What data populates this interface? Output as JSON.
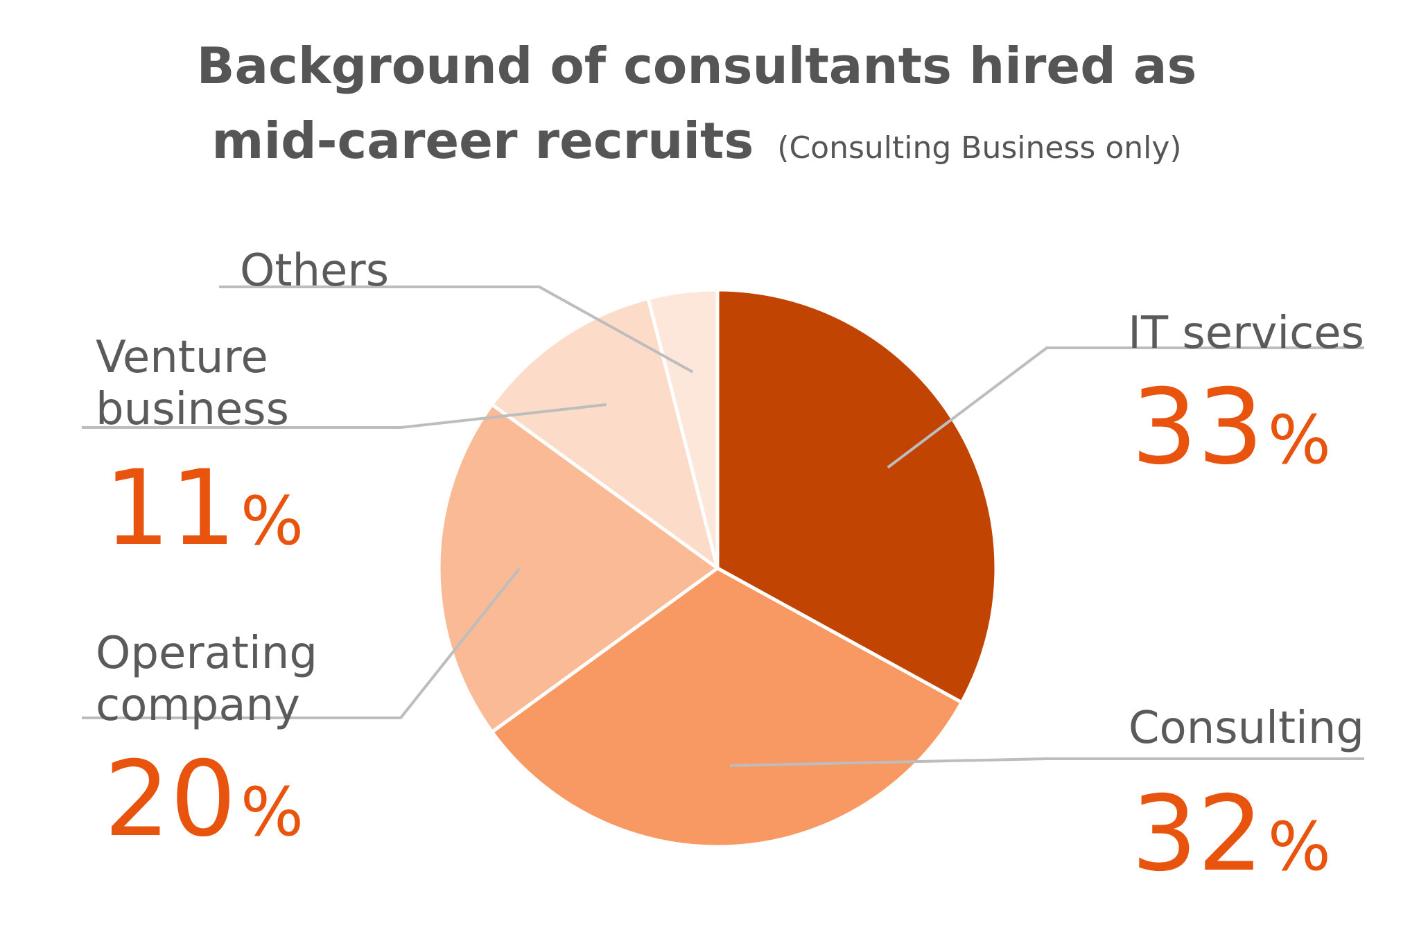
{
  "chart_data": {
    "type": "pie",
    "title_line1": "Background of consultants hired as",
    "title_line2": "mid-career recruits",
    "subtitle": "(Consulting Business only)",
    "unit": "%",
    "slices": [
      {
        "label": "IT services",
        "value": 33,
        "color": "#c24402"
      },
      {
        "label": "Consulting",
        "value": 32,
        "color": "#f89862"
      },
      {
        "label": "Operating company",
        "value": 20,
        "color": "#fbba96"
      },
      {
        "label": "Venture business",
        "value": 11,
        "color": "#fcdcc9"
      },
      {
        "label": "Others",
        "value": 4,
        "color": "#fde6da"
      }
    ],
    "label_lines": {
      "IT services": [
        "IT services"
      ],
      "Consulting": [
        "Consulting"
      ],
      "Operating company": [
        "Operating",
        "company"
      ],
      "Venture business": [
        "Venture",
        "business"
      ],
      "Others": [
        "Others"
      ]
    }
  }
}
